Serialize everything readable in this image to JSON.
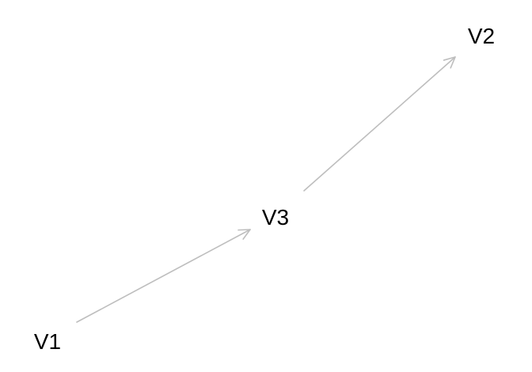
{
  "diagram": {
    "nodes": [
      {
        "id": "V1",
        "label": "V1"
      },
      {
        "id": "V2",
        "label": "V2"
      },
      {
        "id": "V3",
        "label": "V3"
      }
    ],
    "edges": [
      {
        "from": "V1",
        "to": "V3"
      },
      {
        "from": "V3",
        "to": "V2"
      }
    ],
    "edge_color": "#bebebe",
    "label_color": "#000000"
  }
}
